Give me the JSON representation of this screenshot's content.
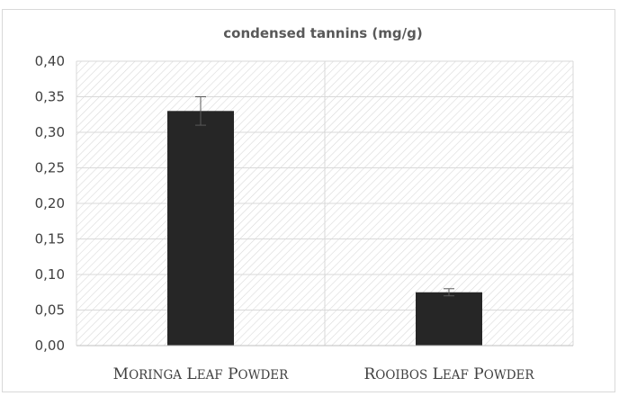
{
  "chart_data": {
    "type": "bar",
    "title": "condensed tannins (mg/g)",
    "categories": [
      "Moringa leaf powder",
      "Rooibos leaf powder"
    ],
    "values": [
      0.33,
      0.075
    ],
    "error": [
      0.02,
      0.005
    ],
    "ylim": [
      0,
      0.4
    ],
    "ytick_step": 0.05,
    "ytick_labels": [
      "0,00",
      "0,05",
      "0,10",
      "0,15",
      "0,20",
      "0,25",
      "0,30",
      "0,35",
      "0,40"
    ],
    "xlabel": "",
    "ylabel": "",
    "grid": true,
    "legend": "none",
    "colors": {
      "bar": "#262626",
      "hatch": "#d9d9d9",
      "grid": "#d9d9d9",
      "axis": "#bfbfbf",
      "error": "#595959"
    }
  }
}
